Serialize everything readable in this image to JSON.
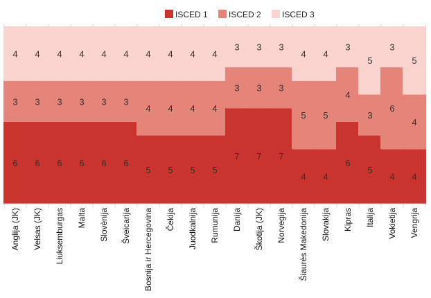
{
  "chart_data": {
    "type": "bar",
    "stacked": true,
    "categories": [
      "Anglija (JK)",
      "Velsas (JK)",
      "Liuksemburgas",
      "Malta",
      "Slovėnija",
      "Šveicarija",
      "Bosnija ir Hercegovina",
      "Čekija",
      "Juodkalnija",
      "Rumunija",
      "Danija",
      "Škotija (JK)",
      "Norvegija",
      "Šiaurės Makedonija",
      "Slovakija",
      "Kipras",
      "Italija",
      "Vokietija",
      "Vengrija"
    ],
    "series": [
      {
        "name": "ISCED 1",
        "color": "#c9342f",
        "values": [
          6,
          6,
          6,
          6,
          6,
          6,
          5,
          5,
          5,
          5,
          7,
          7,
          7,
          4,
          4,
          6,
          5,
          4,
          4
        ]
      },
      {
        "name": "ISCED 2",
        "color": "#e5857a",
        "values": [
          3,
          3,
          3,
          3,
          3,
          3,
          4,
          4,
          4,
          4,
          3,
          3,
          3,
          5,
          5,
          4,
          3,
          6,
          4
        ]
      },
      {
        "name": "ISCED 3",
        "color": "#fbd3ce",
        "values": [
          4,
          4,
          4,
          4,
          4,
          4,
          4,
          4,
          4,
          4,
          3,
          3,
          3,
          4,
          4,
          3,
          5,
          3,
          5
        ]
      }
    ],
    "ylim": [
      0,
      13
    ],
    "grid": true,
    "legend_position": "top"
  }
}
